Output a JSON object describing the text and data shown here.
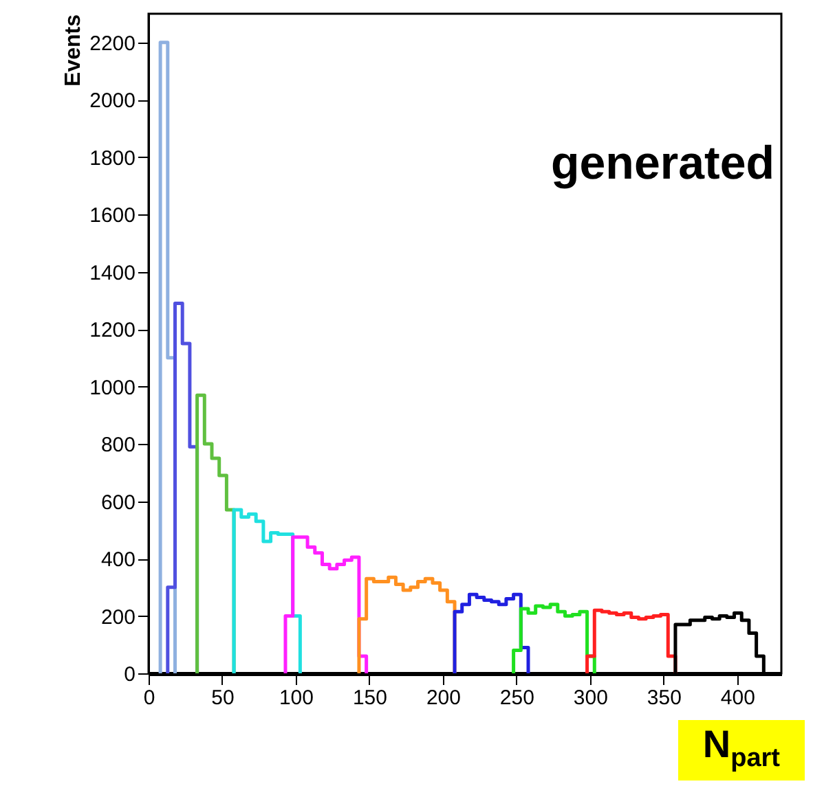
{
  "chart_data": {
    "type": "step",
    "xlabel": "N$_{part}$",
    "ylabel": "Events",
    "annotations": [
      "generated"
    ],
    "xlim": [
      0,
      430
    ],
    "xticks": [
      0,
      50,
      100,
      150,
      200,
      250,
      300,
      350,
      400
    ],
    "ylim": [
      0,
      2300
    ],
    "yticks": [
      0,
      200,
      400,
      600,
      800,
      1000,
      1200,
      1400,
      1600,
      1800,
      2000,
      2200
    ],
    "grid": false,
    "series": [
      {
        "color": "#8fb0e0",
        "x": [
          8,
          8,
          13,
          18,
          18
        ],
        "values": [
          0,
          2200,
          1100,
          1100,
          0
        ]
      },
      {
        "color": "#5050e0",
        "x": [
          13,
          13,
          18,
          23,
          28,
          33,
          33
        ],
        "values": [
          0,
          300,
          1290,
          1150,
          790,
          790,
          0
        ]
      },
      {
        "color": "#60c040",
        "x": [
          33,
          33,
          38,
          43,
          48,
          53,
          58,
          58
        ],
        "values": [
          0,
          970,
          800,
          750,
          690,
          570,
          570,
          0
        ]
      },
      {
        "color": "#20e0e0",
        "x": [
          58,
          58,
          63,
          68,
          73,
          78,
          83,
          88,
          93,
          98,
          103,
          103
        ],
        "values": [
          0,
          570,
          545,
          555,
          530,
          460,
          490,
          485,
          485,
          200,
          200,
          0
        ]
      },
      {
        "color": "#ff20ff",
        "x": [
          93,
          93,
          98,
          103,
          108,
          113,
          118,
          123,
          128,
          133,
          138,
          143,
          148,
          148
        ],
        "values": [
          0,
          200,
          475,
          475,
          440,
          420,
          380,
          365,
          380,
          395,
          405,
          60,
          60,
          0
        ]
      },
      {
        "color": "#ff9020",
        "x": [
          143,
          143,
          148,
          153,
          158,
          163,
          168,
          173,
          178,
          183,
          188,
          193,
          198,
          203,
          208,
          208
        ],
        "values": [
          0,
          190,
          330,
          320,
          320,
          335,
          310,
          290,
          300,
          320,
          330,
          315,
          290,
          250,
          250,
          0
        ]
      },
      {
        "color": "#2020e0",
        "x": [
          208,
          208,
          213,
          218,
          223,
          228,
          233,
          238,
          243,
          248,
          253,
          258,
          258
        ],
        "values": [
          0,
          215,
          240,
          275,
          265,
          255,
          250,
          240,
          260,
          275,
          90,
          90,
          0
        ]
      },
      {
        "color": "#20e020",
        "x": [
          248,
          248,
          253,
          258,
          263,
          268,
          273,
          278,
          283,
          288,
          293,
          298,
          303,
          303
        ],
        "values": [
          0,
          80,
          225,
          210,
          235,
          230,
          240,
          215,
          200,
          205,
          215,
          60,
          60,
          0
        ]
      },
      {
        "color": "#ff2020",
        "x": [
          298,
          298,
          303,
          308,
          313,
          318,
          323,
          328,
          333,
          338,
          343,
          348,
          353,
          358,
          358
        ],
        "values": [
          0,
          60,
          220,
          215,
          210,
          205,
          210,
          195,
          190,
          195,
          200,
          205,
          60,
          60,
          0
        ]
      },
      {
        "color": "#000000",
        "x": [
          358,
          358,
          363,
          368,
          373,
          378,
          383,
          388,
          393,
          398,
          403,
          408,
          413,
          418,
          418
        ],
        "values": [
          0,
          170,
          170,
          185,
          185,
          195,
          190,
          200,
          195,
          210,
          185,
          140,
          60,
          60,
          0
        ]
      }
    ]
  }
}
